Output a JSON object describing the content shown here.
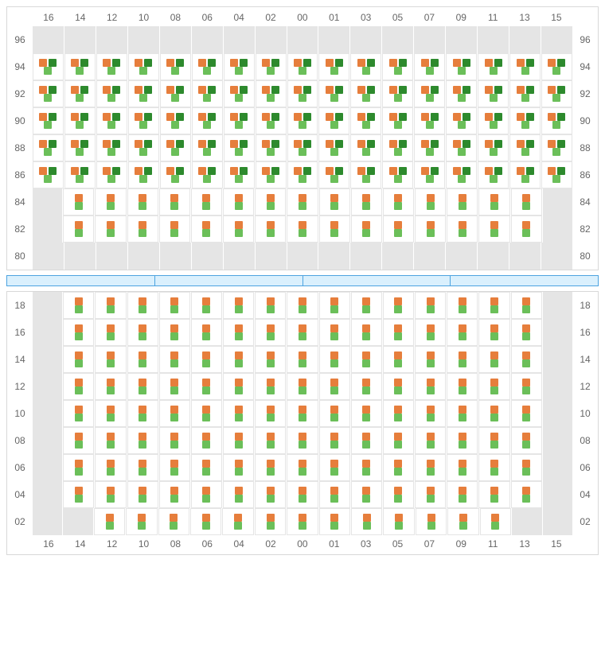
{
  "colors": {
    "orange": "#e67e3c",
    "darkgreen": "#2d8a2d",
    "green": "#6bbf59",
    "empty_bg": "#e5e5e5",
    "filled_bg": "#ffffff",
    "border": "#d8d8d8",
    "cell_border": "#e5e5e5",
    "divider_bg": "#daf0fd",
    "divider_border": "#4da3e0",
    "text": "#666666"
  },
  "column_labels": [
    "16",
    "14",
    "12",
    "10",
    "08",
    "06",
    "04",
    "02",
    "00",
    "01",
    "03",
    "05",
    "07",
    "09",
    "11",
    "13",
    "15"
  ],
  "top_section": {
    "rows": [
      {
        "label": "96",
        "cells": [
          "empty",
          "empty",
          "empty",
          "empty",
          "empty",
          "empty",
          "empty",
          "empty",
          "empty",
          "empty",
          "empty",
          "empty",
          "empty",
          "empty",
          "empty",
          "empty",
          "empty"
        ]
      },
      {
        "label": "94",
        "cells": [
          "A",
          "A",
          "A",
          "A",
          "A",
          "A",
          "A",
          "A",
          "A",
          "A",
          "A",
          "A",
          "A",
          "A",
          "A",
          "A",
          "A"
        ]
      },
      {
        "label": "92",
        "cells": [
          "A",
          "A",
          "A",
          "A",
          "A",
          "A",
          "A",
          "A",
          "A",
          "A",
          "A",
          "A",
          "A",
          "A",
          "A",
          "A",
          "A"
        ]
      },
      {
        "label": "90",
        "cells": [
          "A",
          "A",
          "A",
          "A",
          "A",
          "A",
          "A",
          "A",
          "A",
          "A",
          "A",
          "A",
          "A",
          "A",
          "A",
          "A",
          "A"
        ]
      },
      {
        "label": "88",
        "cells": [
          "A",
          "A",
          "A",
          "A",
          "A",
          "A",
          "A",
          "A",
          "A",
          "A",
          "A",
          "A",
          "A",
          "A",
          "A",
          "A",
          "A"
        ]
      },
      {
        "label": "86",
        "cells": [
          "A",
          "A",
          "A",
          "A",
          "A",
          "A",
          "A",
          "A",
          "A",
          "A",
          "A",
          "A",
          "A",
          "A",
          "A",
          "A",
          "A"
        ]
      },
      {
        "label": "84",
        "cells": [
          "empty",
          "B",
          "B",
          "B",
          "B",
          "B",
          "B",
          "B",
          "B",
          "B",
          "B",
          "B",
          "B",
          "B",
          "B",
          "B",
          "empty"
        ]
      },
      {
        "label": "82",
        "cells": [
          "empty",
          "B",
          "B",
          "B",
          "B",
          "B",
          "B",
          "B",
          "B",
          "B",
          "B",
          "B",
          "B",
          "B",
          "B",
          "B",
          "empty"
        ]
      },
      {
        "label": "80",
        "cells": [
          "empty",
          "empty",
          "empty",
          "empty",
          "empty",
          "empty",
          "empty",
          "empty",
          "empty",
          "empty",
          "empty",
          "empty",
          "empty",
          "empty",
          "empty",
          "empty",
          "empty"
        ]
      }
    ]
  },
  "divider_segments": 4,
  "bottom_section": {
    "rows": [
      {
        "label": "18",
        "cells": [
          "empty",
          "B",
          "B",
          "B",
          "B",
          "B",
          "B",
          "B",
          "B",
          "B",
          "B",
          "B",
          "B",
          "B",
          "B",
          "B",
          "empty"
        ]
      },
      {
        "label": "16",
        "cells": [
          "empty",
          "B",
          "B",
          "B",
          "B",
          "B",
          "B",
          "B",
          "B",
          "B",
          "B",
          "B",
          "B",
          "B",
          "B",
          "B",
          "empty"
        ]
      },
      {
        "label": "14",
        "cells": [
          "empty",
          "B",
          "B",
          "B",
          "B",
          "B",
          "B",
          "B",
          "B",
          "B",
          "B",
          "B",
          "B",
          "B",
          "B",
          "B",
          "empty"
        ]
      },
      {
        "label": "12",
        "cells": [
          "empty",
          "B",
          "B",
          "B",
          "B",
          "B",
          "B",
          "B",
          "B",
          "B",
          "B",
          "B",
          "B",
          "B",
          "B",
          "B",
          "empty"
        ]
      },
      {
        "label": "10",
        "cells": [
          "empty",
          "B",
          "B",
          "B",
          "B",
          "B",
          "B",
          "B",
          "B",
          "B",
          "B",
          "B",
          "B",
          "B",
          "B",
          "B",
          "empty"
        ]
      },
      {
        "label": "08",
        "cells": [
          "empty",
          "B",
          "B",
          "B",
          "B",
          "B",
          "B",
          "B",
          "B",
          "B",
          "B",
          "B",
          "B",
          "B",
          "B",
          "B",
          "empty"
        ]
      },
      {
        "label": "06",
        "cells": [
          "empty",
          "B",
          "B",
          "B",
          "B",
          "B",
          "B",
          "B",
          "B",
          "B",
          "B",
          "B",
          "B",
          "B",
          "B",
          "B",
          "empty"
        ]
      },
      {
        "label": "04",
        "cells": [
          "empty",
          "B",
          "B",
          "B",
          "B",
          "B",
          "B",
          "B",
          "B",
          "B",
          "B",
          "B",
          "B",
          "B",
          "B",
          "B",
          "empty"
        ]
      },
      {
        "label": "02",
        "cells": [
          "empty",
          "empty",
          "B",
          "B",
          "B",
          "B",
          "B",
          "B",
          "B",
          "B",
          "B",
          "B",
          "B",
          "B",
          "B",
          "empty",
          "empty"
        ]
      }
    ]
  },
  "cell_patterns": {
    "A": [
      [
        "orange",
        "darkgreen"
      ],
      [
        "green"
      ]
    ],
    "B": [
      [
        "orange"
      ],
      [
        "green"
      ]
    ]
  }
}
